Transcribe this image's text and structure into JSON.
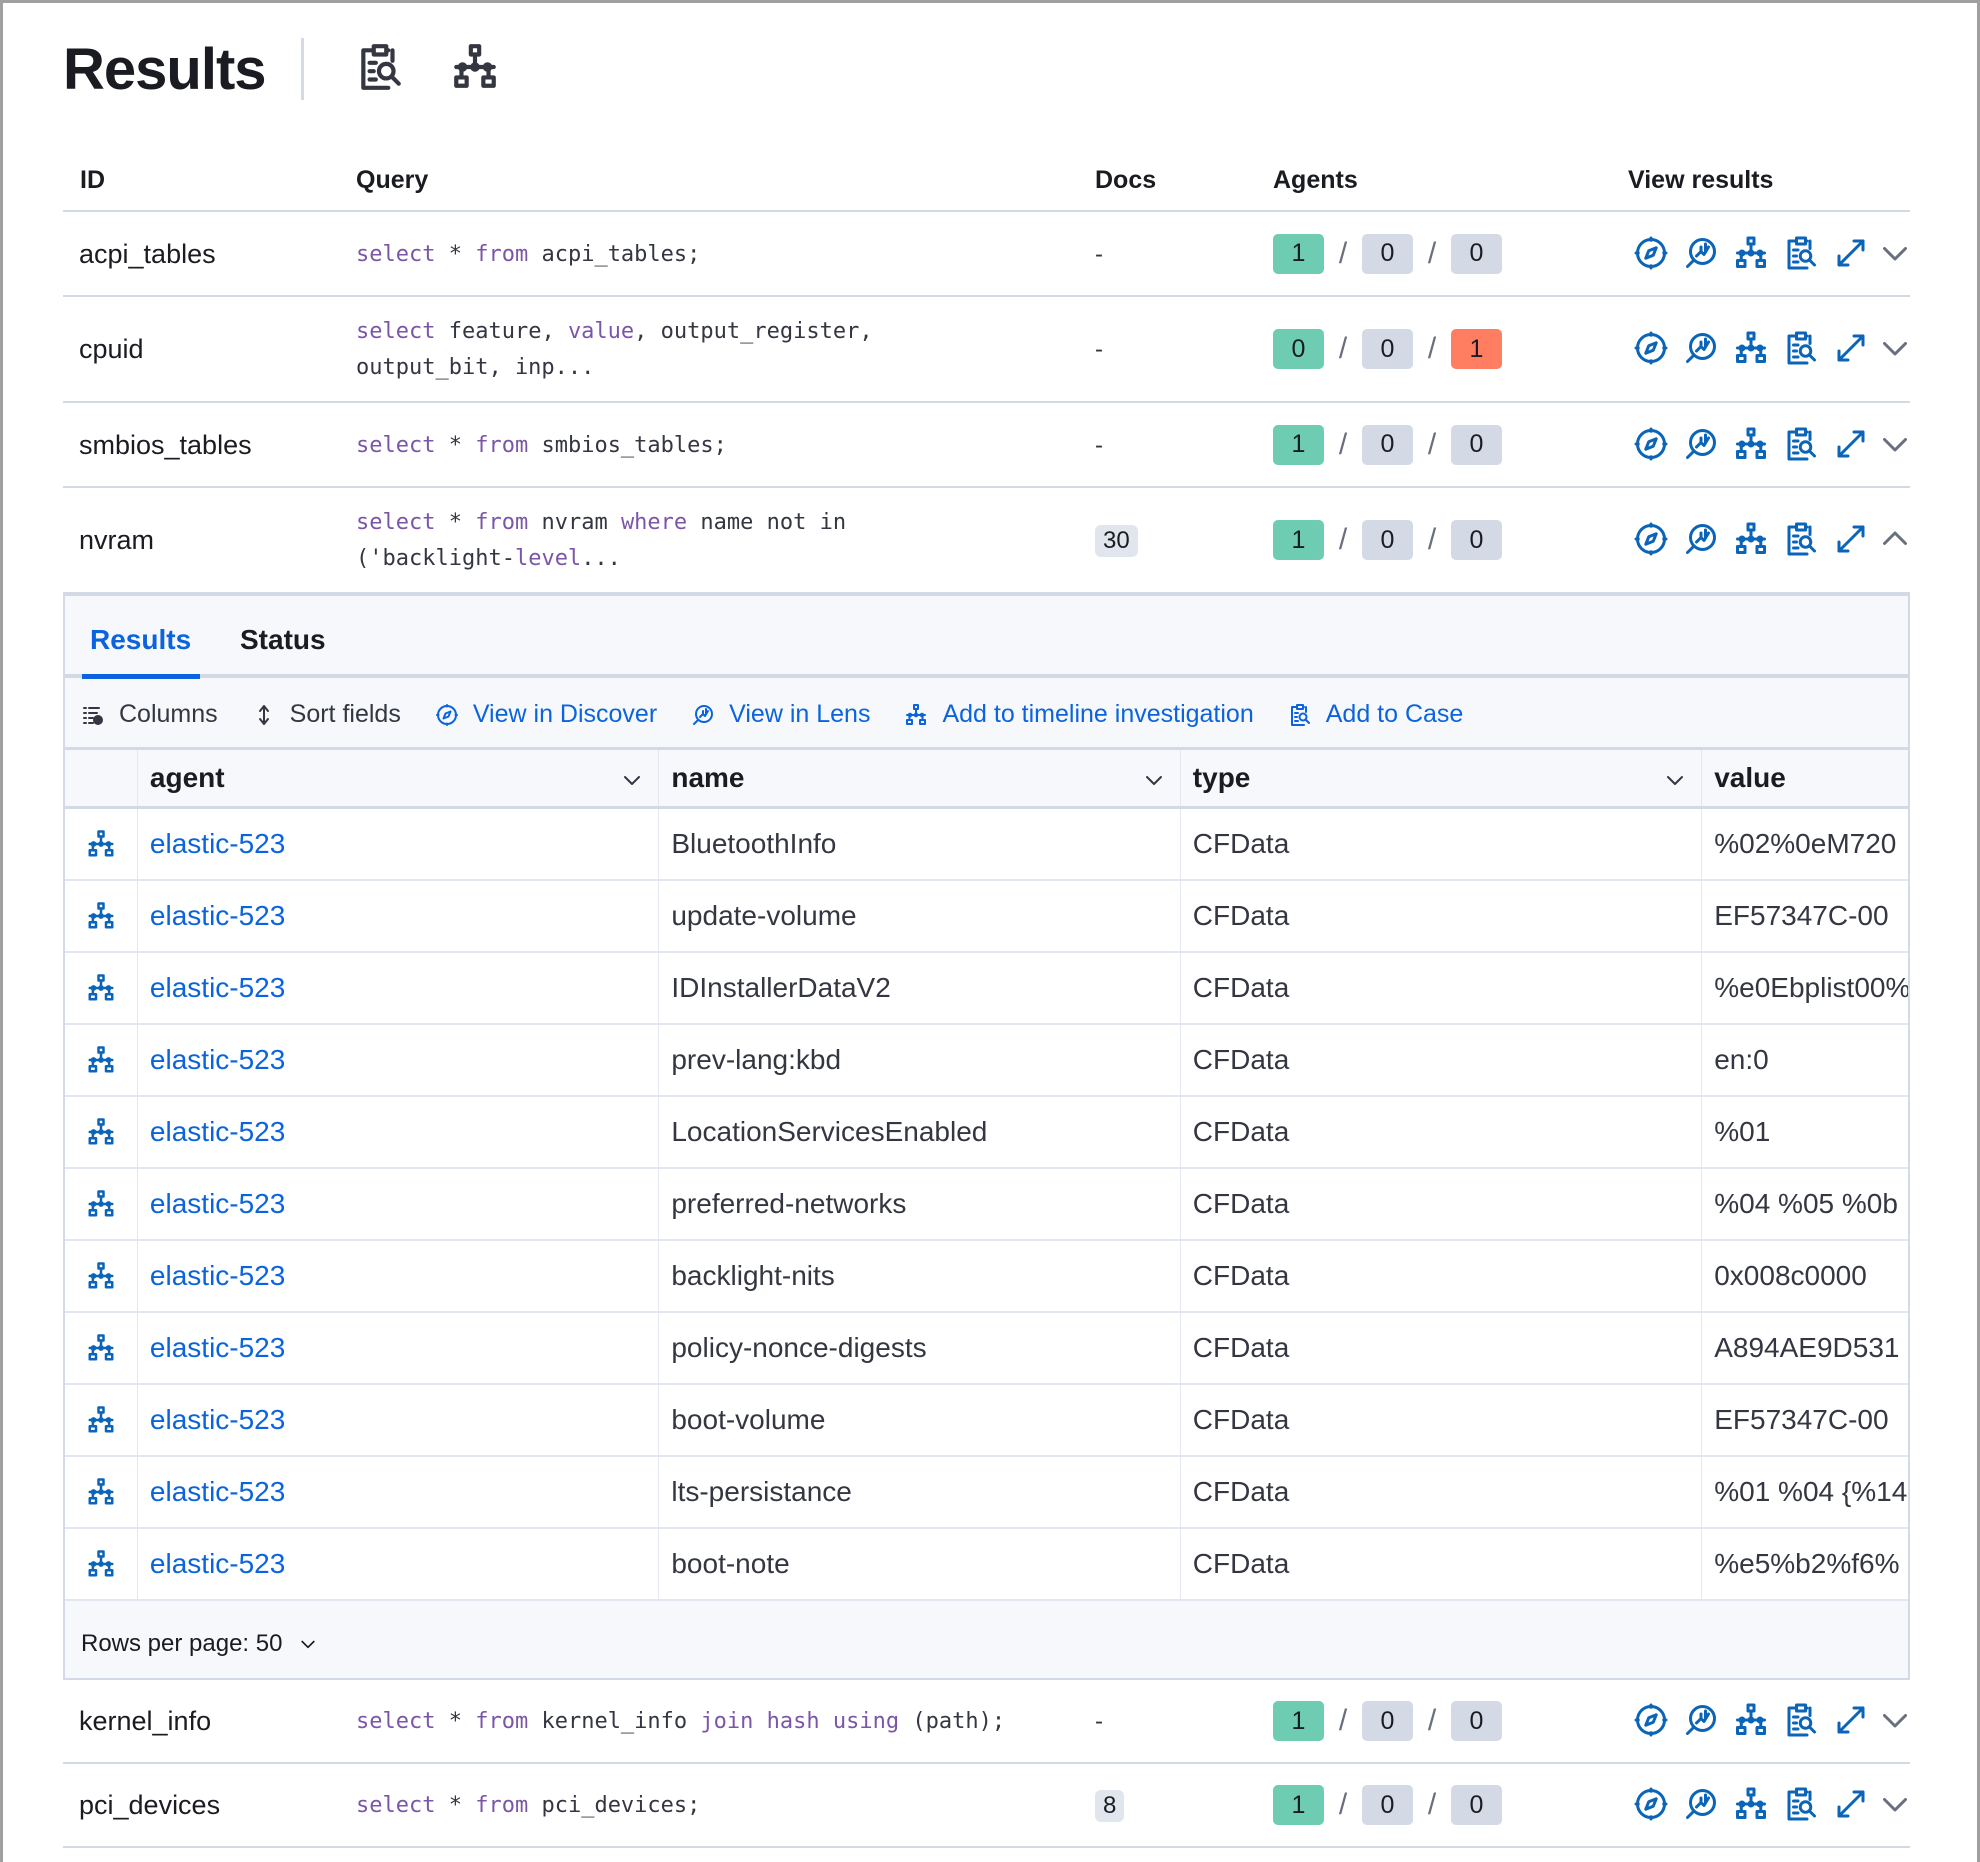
{
  "header": {
    "title": "Results",
    "icons": [
      "clipboard-search-icon",
      "timeline-icon"
    ]
  },
  "colors": {
    "success": "#6dccb1",
    "neutral": "#d3dae6",
    "danger": "#ff7e62",
    "link": "#0b64dd",
    "keyword": "#7b56a8"
  },
  "table": {
    "columns": [
      "ID",
      "Query",
      "Docs",
      "Agents",
      "View results"
    ],
    "rows": [
      {
        "id": "acpi_tables",
        "query": [
          [
            {
              "t": "select",
              "k": 1
            },
            {
              "t": " * "
            },
            {
              "t": "from",
              "k": 1
            },
            {
              "t": " acpi_tables;"
            }
          ]
        ],
        "docs": "-",
        "agents": [
          "1",
          "0",
          "0"
        ],
        "agent_status": [
          "success",
          "neutral",
          "neutral"
        ],
        "expanded": false
      },
      {
        "id": "cpuid",
        "query": [
          [
            {
              "t": "select",
              "k": 1
            },
            {
              "t": " feature, "
            },
            {
              "t": "value",
              "k": 1
            },
            {
              "t": ", output_register,"
            }
          ],
          [
            {
              "t": "output_bit, inp..."
            }
          ]
        ],
        "docs": "-",
        "agents": [
          "0",
          "0",
          "1"
        ],
        "agent_status": [
          "success",
          "neutral",
          "danger"
        ],
        "expanded": false
      },
      {
        "id": "smbios_tables",
        "query": [
          [
            {
              "t": "select",
              "k": 1
            },
            {
              "t": " * "
            },
            {
              "t": "from",
              "k": 1
            },
            {
              "t": " smbios_tables;"
            }
          ]
        ],
        "docs": "-",
        "agents": [
          "1",
          "0",
          "0"
        ],
        "agent_status": [
          "success",
          "neutral",
          "neutral"
        ],
        "expanded": false
      },
      {
        "id": "nvram",
        "query": [
          [
            {
              "t": "select",
              "k": 1
            },
            {
              "t": " * "
            },
            {
              "t": "from",
              "k": 1
            },
            {
              "t": " nvram "
            },
            {
              "t": "where",
              "k": 1
            },
            {
              "t": " name not in"
            }
          ],
          [
            {
              "t": "('backlight-"
            },
            {
              "t": "level",
              "k": 1
            },
            {
              "t": "..."
            }
          ]
        ],
        "docs": "30",
        "agents": [
          "1",
          "0",
          "0"
        ],
        "agent_status": [
          "success",
          "neutral",
          "neutral"
        ],
        "expanded": true
      },
      {
        "id": "kernel_info",
        "query": [
          [
            {
              "t": "select",
              "k": 1
            },
            {
              "t": " * "
            },
            {
              "t": "from",
              "k": 1
            },
            {
              "t": " kernel_info "
            },
            {
              "t": "join",
              "k": 1
            },
            {
              "t": " "
            },
            {
              "t": "hash",
              "k": 1
            },
            {
              "t": " "
            },
            {
              "t": "using",
              "k": 1
            },
            {
              "t": " (path);"
            }
          ]
        ],
        "docs": "-",
        "agents": [
          "1",
          "0",
          "0"
        ],
        "agent_status": [
          "success",
          "neutral",
          "neutral"
        ],
        "expanded": false
      },
      {
        "id": "pci_devices",
        "query": [
          [
            {
              "t": "select",
              "k": 1
            },
            {
              "t": " * "
            },
            {
              "t": "from",
              "k": 1
            },
            {
              "t": " pci_devices;"
            }
          ]
        ],
        "docs": "8",
        "agents": [
          "1",
          "0",
          "0"
        ],
        "agent_status": [
          "success",
          "neutral",
          "neutral"
        ],
        "expanded": false
      }
    ],
    "view_icons": [
      "discover-compass-icon",
      "lens-icon",
      "timeline-icon",
      "add-to-case-icon",
      "expand-icon"
    ]
  },
  "panel": {
    "tabs": [
      {
        "label": "Results",
        "active": true
      },
      {
        "label": "Status",
        "active": false
      }
    ],
    "toolbar": {
      "columns": "Columns",
      "sort": "Sort fields",
      "discover": "View in Discover",
      "lens": "View in Lens",
      "timeline": "Add to timeline investigation",
      "case": "Add to Case"
    },
    "grid": {
      "columns": [
        "agent",
        "name",
        "type",
        "value"
      ],
      "rows": [
        [
          "elastic-523",
          "BluetoothInfo",
          "CFData",
          "%02%0eM720"
        ],
        [
          "elastic-523",
          "update-volume",
          "CFData",
          "EF57347C-00"
        ],
        [
          "elastic-523",
          "IDInstallerDataV2",
          "CFData",
          "%e0Ebplist00%"
        ],
        [
          "elastic-523",
          "prev-lang:kbd",
          "CFData",
          "en:0"
        ],
        [
          "elastic-523",
          "LocationServicesEnabled",
          "CFData",
          "%01"
        ],
        [
          "elastic-523",
          "preferred-networks",
          "CFData",
          "%04 %05 %0b"
        ],
        [
          "elastic-523",
          "backlight-nits",
          "CFData",
          "0x008c0000"
        ],
        [
          "elastic-523",
          "policy-nonce-digests",
          "CFData",
          "A894AE9D531"
        ],
        [
          "elastic-523",
          "boot-volume",
          "CFData",
          "EF57347C-00"
        ],
        [
          "elastic-523",
          "lts-persistance",
          "CFData",
          "%01 %04 {%14"
        ],
        [
          "elastic-523",
          "boot-note",
          "CFData",
          "%e5%b2%f6%"
        ]
      ]
    },
    "rows_per_page": "Rows per page: 50"
  }
}
